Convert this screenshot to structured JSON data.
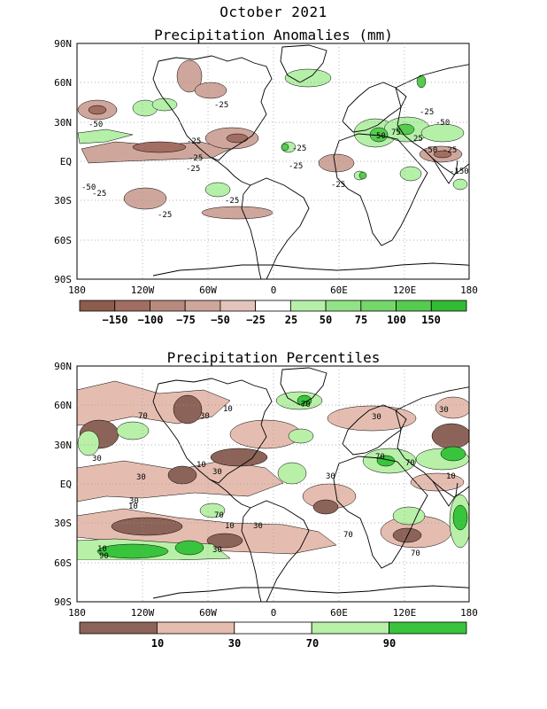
{
  "page_title": "October 2021",
  "panels": [
    {
      "title": "Precipitation Anomalies (mm)",
      "lat_labels": [
        "90N",
        "60N",
        "30N",
        "EQ",
        "30S",
        "60S",
        "90S"
      ],
      "lon_labels": [
        "180",
        "120W",
        "60W",
        "0",
        "60E",
        "120E",
        "180"
      ],
      "legend_labels": [
        "−150",
        "−100",
        "−75",
        "−50",
        "−25",
        "25",
        "50",
        "75",
        "100",
        "150"
      ],
      "legend_colors": [
        "#8c5c4c",
        "#a26e61",
        "#b88a7e",
        "#cfa69b",
        "#e3c3ba",
        "#ffffff",
        "#b5f0a9",
        "#92e287",
        "#74d66b",
        "#55cc4f",
        "#33bb33"
      ],
      "contour_labels": [
        "-50",
        "-50",
        "-25",
        "-25",
        "-25",
        "-25",
        "-25",
        "-25",
        "-25",
        "-25",
        "-25",
        "-25",
        "50",
        "75",
        "25",
        "-50",
        "-25",
        "-150",
        "-50",
        "-25"
      ]
    },
    {
      "title": "Precipitation Percentiles",
      "lat_labels": [
        "90N",
        "60N",
        "30N",
        "EQ",
        "30S",
        "60S",
        "90S"
      ],
      "lon_labels": [
        "180",
        "120W",
        "60W",
        "0",
        "60E",
        "120E",
        "180"
      ],
      "legend_labels": [
        "10",
        "30",
        "70",
        "90"
      ],
      "legend_colors": [
        "#8c6358",
        "#e5bdb0",
        "#ffffff",
        "#b8f0a8",
        "#39c43d"
      ],
      "contour_labels": [
        "70",
        "30",
        "10",
        "30",
        "70",
        "30",
        "30",
        "10",
        "10",
        "30",
        "30",
        "70",
        "70",
        "10",
        "30",
        "30",
        "10",
        "70",
        "30",
        "90",
        "10",
        "30",
        "70",
        "70"
      ]
    }
  ]
}
